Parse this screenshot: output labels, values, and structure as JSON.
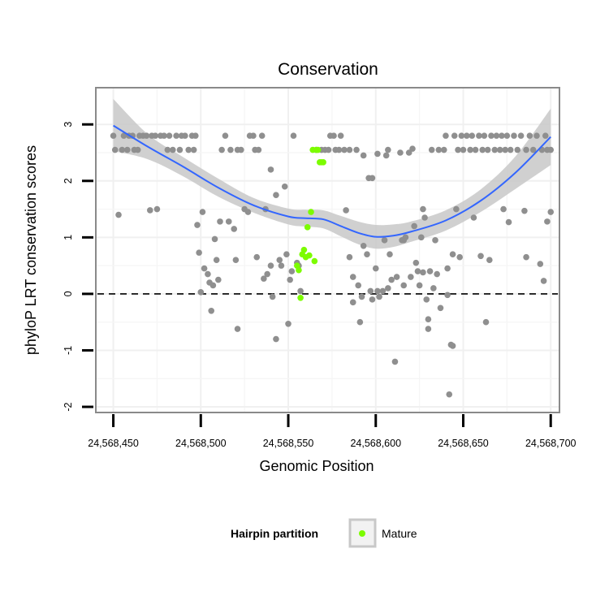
{
  "chart_data": {
    "type": "scatter",
    "title": "Conservation",
    "xlabel": "Genomic Position",
    "ylabel": "phyloP LRT conservation scores",
    "xlim": [
      24568440,
      24568705
    ],
    "ylim": [
      -2.1,
      3.65
    ],
    "x_ticks": [
      24568450,
      24568500,
      24568550,
      24568600,
      24568650,
      24568700
    ],
    "x_tick_labels": [
      "24,568,450",
      "24,568,500",
      "24,568,550",
      "24,568,600",
      "24,568,650",
      "24,568,700"
    ],
    "y_ticks": [
      -2,
      -1,
      0,
      1,
      2,
      3
    ],
    "y_tick_labels": [
      "-2",
      "-1",
      "0",
      "1",
      "2",
      "3"
    ],
    "grid": true,
    "reference_line": {
      "y": 0,
      "style": "dashed"
    },
    "legend": {
      "title": "Hairpin partition",
      "placement": "bottom",
      "entries": [
        {
          "label": "Mature",
          "color": "#7cfc00"
        }
      ]
    },
    "colors": {
      "other": "#8f8f8f",
      "mature": "#7cfc00",
      "smooth": "#3366ff",
      "band": "#c8c8c8"
    },
    "series": [
      {
        "name": "",
        "color": "#8f8f8f",
        "points": [
          [
            24568450,
            2.8
          ],
          [
            24568451,
            2.55
          ],
          [
            24568453,
            1.4
          ],
          [
            24568455,
            2.55
          ],
          [
            24568456,
            2.8
          ],
          [
            24568458,
            2.55
          ],
          [
            24568459,
            2.8
          ],
          [
            24568461,
            2.8
          ],
          [
            24568462,
            2.55
          ],
          [
            24568464,
            2.55
          ],
          [
            24568465,
            2.8
          ],
          [
            24568467,
            2.8
          ],
          [
            24568469,
            2.8
          ],
          [
            24568471,
            1.48
          ],
          [
            24568472,
            2.8
          ],
          [
            24568474,
            2.8
          ],
          [
            24568475,
            1.5
          ],
          [
            24568477,
            2.8
          ],
          [
            24568479,
            2.8
          ],
          [
            24568481,
            2.55
          ],
          [
            24568482,
            2.8
          ],
          [
            24568484,
            2.55
          ],
          [
            24568486,
            2.8
          ],
          [
            24568488,
            2.55
          ],
          [
            24568489,
            2.8
          ],
          [
            24568491,
            2.8
          ],
          [
            24568493,
            2.55
          ],
          [
            24568495,
            2.8
          ],
          [
            24568496,
            2.55
          ],
          [
            24568497,
            2.8
          ],
          [
            24568498,
            1.22
          ],
          [
            24568499,
            0.73
          ],
          [
            24568501,
            1.45
          ],
          [
            24568500,
            0.03
          ],
          [
            24568502,
            0.45
          ],
          [
            24568504,
            0.35
          ],
          [
            24568505,
            0.2
          ],
          [
            24568506,
            -0.3
          ],
          [
            24568507,
            0.15
          ],
          [
            24568508,
            0.97
          ],
          [
            24568509,
            0.6
          ],
          [
            24568510,
            0.25
          ],
          [
            24568511,
            1.28
          ],
          [
            24568512,
            2.55
          ],
          [
            24568514,
            2.8
          ],
          [
            24568516,
            1.28
          ],
          [
            24568517,
            2.55
          ],
          [
            24568519,
            1.15
          ],
          [
            24568520,
            0.6
          ],
          [
            24568521,
            2.55
          ],
          [
            24568521,
            -0.62
          ],
          [
            24568523,
            2.55
          ],
          [
            24568525,
            1.5
          ],
          [
            24568527,
            1.45
          ],
          [
            24568528,
            2.8
          ],
          [
            24568530,
            2.8
          ],
          [
            24568531,
            2.55
          ],
          [
            24568532,
            0.65
          ],
          [
            24568533,
            2.55
          ],
          [
            24568535,
            2.8
          ],
          [
            24568536,
            0.27
          ],
          [
            24568537,
            1.5
          ],
          [
            24568538,
            0.35
          ],
          [
            24568540,
            2.2
          ],
          [
            24568540,
            0.5
          ],
          [
            24568541,
            -0.05
          ],
          [
            24568543,
            1.75
          ],
          [
            24568543,
            -0.8
          ],
          [
            24568545,
            0.6
          ],
          [
            24568546,
            0.5
          ],
          [
            24568548,
            1.9
          ],
          [
            24568549,
            0.7
          ],
          [
            24568550,
            -0.53
          ],
          [
            24568551,
            0.25
          ],
          [
            24568552,
            0.4
          ],
          [
            24568553,
            2.8
          ],
          [
            24568555,
            0.55
          ],
          [
            24568556,
            0.5
          ],
          [
            24568557,
            0.05
          ],
          [
            24568566,
            2.55
          ],
          [
            24568569,
            2.55
          ],
          [
            24568571,
            2.55
          ],
          [
            24568573,
            2.55
          ],
          [
            24568574,
            2.8
          ],
          [
            24568576,
            2.8
          ],
          [
            24568577,
            2.55
          ],
          [
            24568579,
            2.55
          ],
          [
            24568580,
            2.8
          ],
          [
            24568582,
            2.55
          ],
          [
            24568583,
            1.48
          ],
          [
            24568585,
            2.55
          ],
          [
            24568585,
            0.65
          ],
          [
            24568587,
            0.3
          ],
          [
            24568587,
            -0.15
          ],
          [
            24568589,
            2.55
          ],
          [
            24568590,
            0.15
          ],
          [
            24568591,
            -0.5
          ],
          [
            24568592,
            -0.05
          ],
          [
            24568593,
            2.45
          ],
          [
            24568593,
            0.85
          ],
          [
            24568595,
            0.7
          ],
          [
            24568596,
            2.05
          ],
          [
            24568597,
            0.05
          ],
          [
            24568598,
            2.05
          ],
          [
            24568598,
            -0.1
          ],
          [
            24568600,
            0.45
          ],
          [
            24568601,
            2.48
          ],
          [
            24568601,
            0.05
          ],
          [
            24568602,
            -0.05
          ],
          [
            24568604,
            0.05
          ],
          [
            24568605,
            0.95
          ],
          [
            24568606,
            2.45
          ],
          [
            24568607,
            2.55
          ],
          [
            24568607,
            0.1
          ],
          [
            24568608,
            0.7
          ],
          [
            24568609,
            0.25
          ],
          [
            24568611,
            -1.2
          ],
          [
            24568612,
            0.3
          ],
          [
            24568614,
            2.5
          ],
          [
            24568615,
            0.95
          ],
          [
            24568616,
            0.95
          ],
          [
            24568616,
            0.15
          ],
          [
            24568617,
            1.0
          ],
          [
            24568619,
            2.5
          ],
          [
            24568620,
            0.3
          ],
          [
            24568621,
            2.57
          ],
          [
            24568622,
            1.2
          ],
          [
            24568623,
            0.55
          ],
          [
            24568624,
            0.4
          ],
          [
            24568625,
            0.15
          ],
          [
            24568626,
            1.0
          ],
          [
            24568627,
            0.38
          ],
          [
            24568627,
            1.5
          ],
          [
            24568628,
            1.35
          ],
          [
            24568629,
            -0.1
          ],
          [
            24568630,
            -0.45
          ],
          [
            24568630,
            -0.62
          ],
          [
            24568631,
            0.4
          ],
          [
            24568632,
            2.55
          ],
          [
            24568633,
            0.1
          ],
          [
            24568634,
            0.95
          ],
          [
            24568635,
            0.35
          ],
          [
            24568636,
            2.55
          ],
          [
            24568637,
            -0.25
          ],
          [
            24568639,
            2.55
          ],
          [
            24568640,
            2.8
          ],
          [
            24568641,
            -0.02
          ],
          [
            24568641,
            0.45
          ],
          [
            24568642,
            -1.78
          ],
          [
            24568643,
            -0.9
          ],
          [
            24568644,
            -0.92
          ],
          [
            24568644,
            0.7
          ],
          [
            24568645,
            2.8
          ],
          [
            24568646,
            1.5
          ],
          [
            24568647,
            2.55
          ],
          [
            24568648,
            0.65
          ],
          [
            24568649,
            2.8
          ],
          [
            24568650,
            2.55
          ],
          [
            24568652,
            2.8
          ],
          [
            24568654,
            2.55
          ],
          [
            24568655,
            2.8
          ],
          [
            24568656,
            1.35
          ],
          [
            24568657,
            2.55
          ],
          [
            24568659,
            2.8
          ],
          [
            24568660,
            0.67
          ],
          [
            24568661,
            2.55
          ],
          [
            24568662,
            2.8
          ],
          [
            24568663,
            -0.5
          ],
          [
            24568664,
            2.55
          ],
          [
            24568665,
            0.6
          ],
          [
            24568666,
            2.8
          ],
          [
            24568668,
            2.55
          ],
          [
            24568669,
            2.8
          ],
          [
            24568671,
            2.55
          ],
          [
            24568672,
            2.8
          ],
          [
            24568673,
            1.5
          ],
          [
            24568674,
            2.55
          ],
          [
            24568675,
            2.8
          ],
          [
            24568676,
            1.27
          ],
          [
            24568677,
            2.55
          ],
          [
            24568679,
            2.8
          ],
          [
            24568681,
            2.55
          ],
          [
            24568683,
            2.8
          ],
          [
            24568685,
            1.47
          ],
          [
            24568686,
            0.65
          ],
          [
            24568686,
            2.55
          ],
          [
            24568688,
            2.8
          ],
          [
            24568690,
            2.55
          ],
          [
            24568692,
            2.8
          ],
          [
            24568694,
            0.53
          ],
          [
            24568695,
            2.55
          ],
          [
            24568696,
            0.23
          ],
          [
            24568697,
            2.8
          ],
          [
            24568698,
            2.55
          ],
          [
            24568698,
            1.28
          ],
          [
            24568700,
            1.45
          ],
          [
            24568700,
            2.55
          ]
        ]
      },
      {
        "name": "Mature",
        "color": "#7cfc00",
        "points": [
          [
            24568555,
            0.5
          ],
          [
            24568556,
            0.42
          ],
          [
            24568557,
            -0.07
          ],
          [
            24568558,
            0.7
          ],
          [
            24568559,
            0.78
          ],
          [
            24568560,
            0.65
          ],
          [
            24568561,
            1.18
          ],
          [
            24568562,
            0.68
          ],
          [
            24568563,
            1.45
          ],
          [
            24568564,
            2.55
          ],
          [
            24568565,
            0.58
          ],
          [
            24568566,
            2.55
          ],
          [
            24568567,
            2.55
          ],
          [
            24568568,
            2.33
          ],
          [
            24568569,
            2.33
          ],
          [
            24568570,
            2.33
          ]
        ]
      }
    ],
    "smooth": {
      "x": [
        24568450,
        24568470,
        24568490,
        24568510,
        24568530,
        24568550,
        24568560,
        24568570,
        24568580,
        24568590,
        24568600,
        24568610,
        24568620,
        24568640,
        24568660,
        24568680,
        24568700
      ],
      "y": [
        2.98,
        2.6,
        2.25,
        1.88,
        1.57,
        1.37,
        1.34,
        1.32,
        1.2,
        1.08,
        1.01,
        1.03,
        1.1,
        1.3,
        1.65,
        2.15,
        2.78
      ],
      "lower": [
        2.53,
        2.38,
        2.08,
        1.72,
        1.44,
        1.23,
        1.19,
        1.16,
        1.02,
        0.88,
        0.8,
        0.83,
        0.92,
        1.12,
        1.45,
        1.86,
        2.28
      ],
      "upper": [
        3.45,
        2.82,
        2.42,
        2.04,
        1.7,
        1.51,
        1.49,
        1.48,
        1.38,
        1.28,
        1.22,
        1.23,
        1.28,
        1.48,
        1.85,
        2.44,
        3.28
      ]
    }
  }
}
